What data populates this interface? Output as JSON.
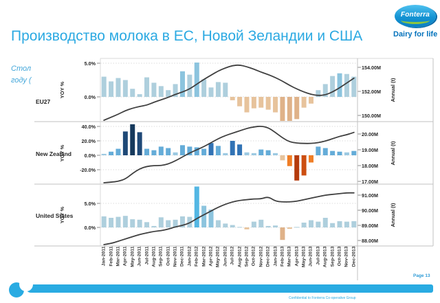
{
  "slide": {
    "title": "Производство молока в ЕС, Новой Зеландии и США",
    "subtitle_line1": "Стол",
    "subtitle_line2": "году (",
    "page_label": "Page 13",
    "footer_note": "Confidential to Fonterra Co-operative Group"
  },
  "logo": {
    "brand": "Fonterra",
    "tagline": "Dairy for life"
  },
  "colors": {
    "accent_blue": "#29ABE2",
    "title_blue": "#2BA9E2",
    "line_dark": "#3F3F3F",
    "grid": "#CFCFCF",
    "border": "#C0C0C0",
    "border_light": "#D8D8D8",
    "bar_blue_light": "#AECFDD",
    "bar_blue_soft": "#8CC4DE",
    "bar_blue_bright": "#54B7E3",
    "bar_blue_pale": "#9CC9E2",
    "bar_blue_med": "#64ACD8",
    "bar_blue_strong": "#3173B5",
    "bar_navy": "#1F4977",
    "bar_navy_dark": "#16395C",
    "bar_tan": "#E7C39C",
    "bar_tan_dark": "#DFB289",
    "bar_orange": "#F07E26",
    "bar_red2": "#CC4E10",
    "bar_red": "#B43A0C",
    "tagline_blue": "#0072BC",
    "logo_green": "#8DC63F"
  },
  "chart_data": {
    "type": "bar",
    "categories": [
      "Jan-2011",
      "Feb-2011",
      "Mar-2011",
      "Apr-2011",
      "May-2011",
      "Jun-2011",
      "Jul-2011",
      "Aug-2011",
      "Sep-2011",
      "Oct-2011",
      "Nov-2011",
      "Dec-2011",
      "Jan-2012",
      "Feb-2012",
      "Mar-2012",
      "Apr-2012",
      "May-2012",
      "Jun-2012",
      "Jul-2012",
      "Aug-2012",
      "Sep-2012",
      "Oct-2012",
      "Nov-2012",
      "Dec-2012",
      "Jan-2013",
      "Feb-2013",
      "Mar-2013",
      "Apr-2013",
      "May-2013",
      "Jun-2013",
      "Jul-2013",
      "Aug-2013",
      "Sep-2013",
      "Oct-2013",
      "Nov-2013",
      "Dec-2013"
    ],
    "legend_position": "none",
    "grid": "dotted-horizontal",
    "panels": [
      {
        "name": "EU27",
        "yoy_axis_title": "YOY %",
        "annual_axis_title": "Annual (t)",
        "yoy_ticks": {
          "labels": [
            "5.0%",
            "0.0%"
          ],
          "values": [
            5,
            0
          ]
        },
        "annual_ticks": {
          "labels": [
            "154.00M",
            "152.00M",
            "150.00M"
          ],
          "values": [
            154,
            152,
            150
          ]
        },
        "bars_yoy_pct": [
          3.0,
          2.3,
          2.8,
          2.5,
          1.2,
          0.4,
          2.9,
          2.1,
          1.6,
          1.0,
          1.9,
          3.8,
          3.3,
          5.1,
          2.6,
          1.4,
          2.2,
          2.1,
          -0.5,
          -1.4,
          -2.3,
          -1.7,
          -1.6,
          -1.9,
          -2.3,
          -3.8,
          -3.7,
          -3.3,
          -1.6,
          -1.0,
          1.0,
          1.9,
          3.1,
          3.5,
          3.4,
          3.0
        ],
        "annual_line_millions": [
          149.6,
          149.85,
          150.1,
          150.4,
          150.6,
          150.75,
          150.85,
          151.1,
          151.3,
          151.5,
          151.75,
          151.95,
          152.2,
          152.6,
          153.0,
          153.35,
          153.7,
          153.95,
          154.15,
          154.2,
          154.05,
          153.85,
          153.6,
          153.4,
          153.15,
          152.85,
          152.5,
          152.2,
          151.95,
          151.75,
          151.65,
          151.7,
          151.95,
          152.3,
          152.7,
          153.1
        ]
      },
      {
        "name": "New Zealand",
        "yoy_axis_title": "YOY %",
        "annual_axis_title": "Annual (t)",
        "yoy_ticks": {
          "labels": [
            "40.0%",
            "20.0%",
            "0.0%",
            "-20.0%"
          ],
          "values": [
            40,
            20,
            0,
            -20
          ]
        },
        "annual_ticks": {
          "labels": [
            "20.00M",
            "19.00M",
            "18.00M",
            "17.00M"
          ],
          "values": [
            20,
            19,
            18,
            17
          ]
        },
        "bars_yoy_pct": [
          2,
          5,
          9,
          33,
          43,
          32,
          9,
          7,
          12,
          10,
          4,
          14,
          12,
          11,
          9,
          17,
          13,
          3,
          20,
          15,
          4,
          3,
          8,
          7,
          3,
          -7,
          -15,
          -35,
          -28,
          -10,
          12,
          10,
          6,
          5,
          4,
          6
        ],
        "annual_line_millions": [
          16.9,
          16.95,
          17.0,
          17.15,
          17.5,
          17.8,
          17.95,
          18.0,
          18.0,
          18.1,
          18.3,
          18.55,
          18.8,
          19.0,
          19.2,
          19.45,
          19.7,
          19.9,
          20.05,
          20.2,
          20.35,
          20.45,
          20.5,
          20.4,
          20.1,
          19.75,
          19.5,
          19.42,
          19.4,
          19.4,
          19.45,
          19.55,
          19.7,
          19.85,
          19.95,
          20.1
        ]
      },
      {
        "name": "United States",
        "yoy_axis_title": "YOY %",
        "annual_axis_title": "Annual (t)",
        "yoy_ticks": {
          "labels": [
            "5.0%",
            "0.0%"
          ],
          "values": [
            5,
            0
          ]
        },
        "annual_ticks": {
          "labels": [
            "91.00M",
            "90.00M",
            "89.00M",
            "88.00M"
          ],
          "values": [
            91,
            90,
            89,
            88
          ]
        },
        "bars_yoy_pct": [
          2.3,
          2.0,
          2.2,
          2.4,
          1.7,
          1.6,
          1.1,
          0.3,
          2.1,
          1.5,
          1.6,
          2.3,
          2.2,
          8.5,
          4.5,
          3.7,
          1.5,
          0.8,
          0.5,
          0.1,
          -0.4,
          1.2,
          1.6,
          0.3,
          0.4,
          -2.6,
          -0.3,
          0.1,
          1.0,
          1.5,
          1.2,
          2.0,
          0.9,
          1.3,
          1.2,
          1.3
        ],
        "annual_line_millions": [
          87.7,
          87.8,
          87.95,
          88.1,
          88.25,
          88.4,
          88.5,
          88.6,
          88.65,
          88.75,
          88.9,
          89.0,
          89.15,
          89.45,
          89.7,
          89.95,
          90.2,
          90.4,
          90.55,
          90.65,
          90.7,
          90.75,
          90.75,
          90.9,
          90.6,
          90.55,
          90.55,
          90.6,
          90.7,
          90.8,
          90.9,
          91.0,
          91.05,
          91.1,
          91.15,
          91.15
        ]
      }
    ]
  }
}
